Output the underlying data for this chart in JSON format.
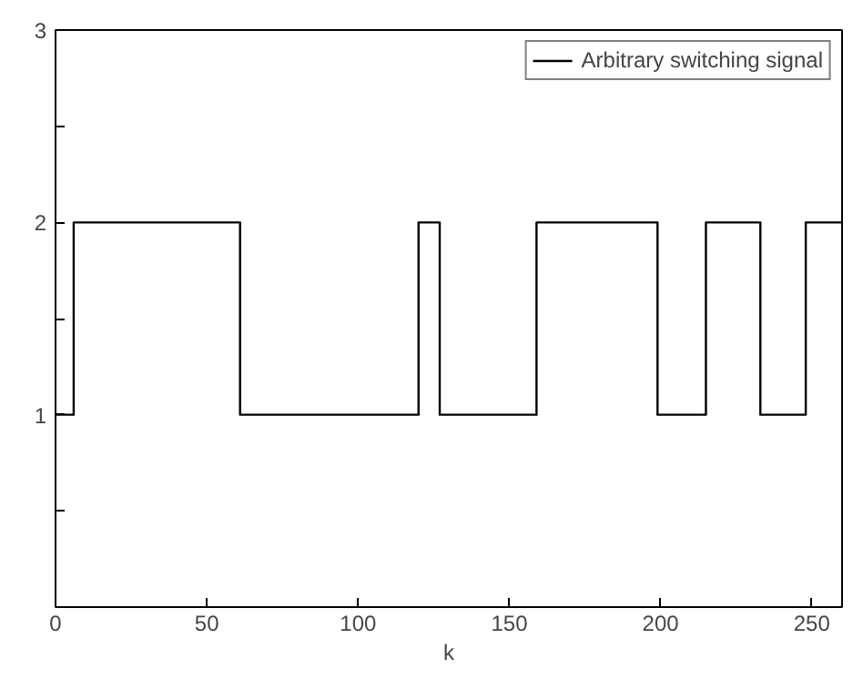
{
  "chart_data": {
    "type": "step",
    "xlabel": "k",
    "x": [
      0,
      6,
      61,
      120,
      127,
      159,
      199,
      215,
      233,
      248,
      260
    ],
    "series": [
      {
        "name": "Arbitrary switching signal",
        "color": "#000000",
        "values": [
          1,
          2,
          1,
          2,
          1,
          2,
          1,
          2,
          1,
          2,
          2
        ]
      }
    ],
    "xlim": [
      0,
      260
    ],
    "xticks": [
      0,
      50,
      100,
      150,
      200,
      250
    ],
    "ylim": [
      0,
      3
    ],
    "yticks": [
      {
        "value": 0,
        "label": null
      },
      {
        "value": 0.5,
        "label": null
      },
      1,
      {
        "value": 1.5,
        "label": null
      },
      2,
      {
        "value": 2.5,
        "label": null
      },
      3
    ],
    "grid": false,
    "legend": "top right",
    "marker": "none",
    "line_style": "solid"
  }
}
